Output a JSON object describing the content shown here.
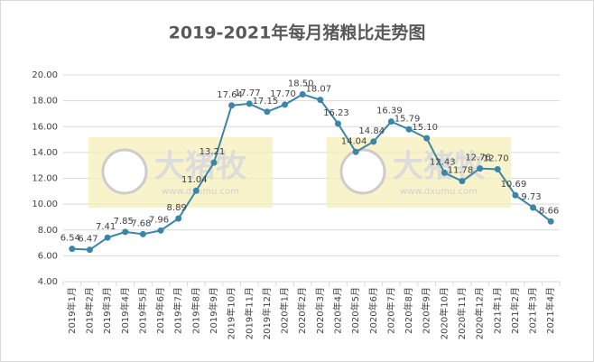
{
  "chart_data": {
    "type": "line",
    "title": "2019-2021年每月猪粮比走势图",
    "categories": [
      "2019年1月",
      "2019年2月",
      "2019年3月",
      "2019年4月",
      "2019年5月",
      "2019年6月",
      "2019年7月",
      "2019年8月",
      "2019年9月",
      "2019年10月",
      "2019年11月",
      "2019年12月",
      "2020年1月",
      "2020年2月",
      "2020年3月",
      "2020年4月",
      "2020年5月",
      "2020年6月",
      "2020年7月",
      "2020年8月",
      "2020年9月",
      "2020年10月",
      "2020年11月",
      "2020年12月",
      "2021年1月",
      "2021年2月",
      "2021年3月",
      "2021年4月"
    ],
    "series": [
      {
        "color": "#3a86a8",
        "values": [
          6.54,
          6.47,
          7.41,
          7.85,
          7.68,
          7.96,
          8.89,
          11.04,
          13.21,
          17.64,
          17.77,
          17.15,
          17.7,
          18.5,
          18.07,
          16.23,
          14.04,
          14.84,
          16.39,
          15.79,
          15.1,
          12.43,
          11.78,
          12.76,
          12.7,
          10.69,
          9.73,
          8.66
        ],
        "value_labels": [
          "6.54",
          "6.47",
          "7.41",
          "7.85",
          "7.68",
          "7.96",
          "8.89",
          "11.04",
          "13.21",
          "17.64",
          "17.77",
          "17.15",
          "17.70",
          "18.50",
          "18.07",
          "16.23",
          "14.04",
          "14.84",
          "16.39",
          "15.79",
          "15.10",
          "12.43",
          "11.78",
          "12.76",
          "12.70",
          "10.69",
          "9.73",
          "8.66"
        ]
      }
    ],
    "ylim": [
      4,
      20
    ],
    "yticks": [
      {
        "value": 4,
        "label": "4.00"
      },
      {
        "value": 6,
        "label": "6.00"
      },
      {
        "value": 8,
        "label": "8.00"
      },
      {
        "value": 10,
        "label": "10.00"
      },
      {
        "value": 12,
        "label": "12.00"
      },
      {
        "value": 14,
        "label": "14.00"
      },
      {
        "value": 16,
        "label": "16.00"
      },
      {
        "value": 18,
        "label": "18.00"
      },
      {
        "value": 20,
        "label": "20.00"
      }
    ],
    "grid": true,
    "watermark": {
      "brand": "大猪牧",
      "url": "www.dxumu.com"
    }
  }
}
